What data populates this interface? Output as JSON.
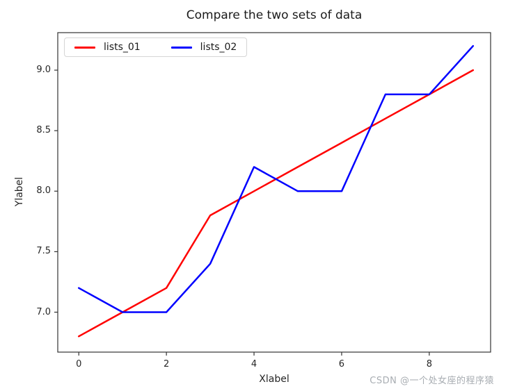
{
  "chart_data": {
    "type": "line",
    "title": "Compare the two sets of data",
    "xlabel": "Xlabel",
    "ylabel": "Ylabel",
    "x": [
      0,
      1,
      2,
      3,
      4,
      5,
      6,
      7,
      8,
      9
    ],
    "series": [
      {
        "name": "lists_01",
        "color": "#ff0000",
        "values": [
          6.8,
          7.0,
          7.2,
          7.8,
          8.0,
          8.2,
          8.4,
          8.6,
          8.8,
          9.0
        ]
      },
      {
        "name": "lists_02",
        "color": "#0000ff",
        "values": [
          7.2,
          7.0,
          7.0,
          7.4,
          8.2,
          8.0,
          8.0,
          8.8,
          8.8,
          9.2
        ]
      }
    ],
    "xlim": [
      -0.48,
      9.4
    ],
    "ylim": [
      6.67,
      9.31
    ],
    "xticks": [
      0,
      2,
      4,
      6,
      8
    ],
    "yticks": [
      7.0,
      7.5,
      8.0,
      8.5,
      9.0
    ],
    "grid": false,
    "legend_position": "upper left",
    "axis_color": "#333333"
  },
  "watermark": {
    "text": "CSDN @一个处女座的程序猿",
    "color": "#a8adb2"
  }
}
